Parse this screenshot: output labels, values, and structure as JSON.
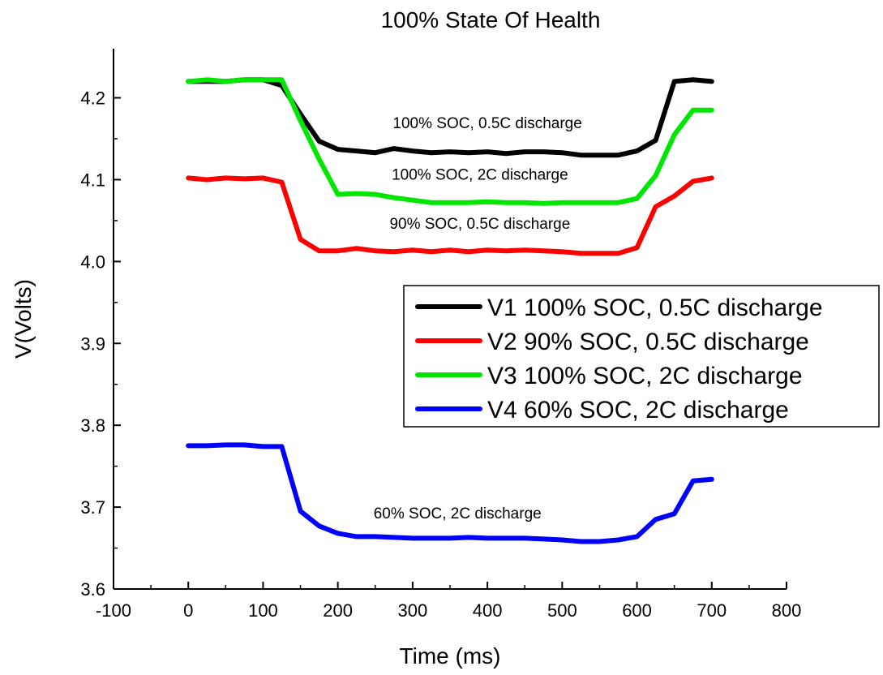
{
  "chart_data": {
    "type": "line",
    "title": "100% State Of Health",
    "xlabel": "Time (ms)",
    "ylabel": "V(Volts)",
    "xlim": [
      -100,
      800
    ],
    "ylim": [
      3.6,
      4.26
    ],
    "xticks": [
      -100,
      0,
      100,
      200,
      300,
      400,
      500,
      600,
      700,
      800
    ],
    "xtick_labels": [
      "-100",
      "0",
      "100",
      "200",
      "300",
      "400",
      "500",
      "600",
      "700",
      "800"
    ],
    "yticks": [
      3.6,
      3.7,
      3.8,
      3.9,
      4.0,
      4.1,
      4.2
    ],
    "ytick_labels": [
      "3.6",
      "3.7",
      "3.8",
      "3.9",
      "4.0",
      "4.1",
      "4.2"
    ],
    "grid": false,
    "legend_position": "right",
    "series": [
      {
        "name": "V1 100% SOC, 0.5C discharge",
        "color": "#000000",
        "x": [
          0,
          25,
          50,
          75,
          100,
          125,
          150,
          175,
          200,
          225,
          250,
          275,
          300,
          325,
          350,
          375,
          400,
          425,
          450,
          475,
          500,
          525,
          550,
          575,
          600,
          625,
          650,
          675,
          700
        ],
        "y": [
          4.22,
          4.22,
          4.22,
          4.222,
          4.222,
          4.215,
          4.18,
          4.147,
          4.137,
          4.135,
          4.133,
          4.138,
          4.135,
          4.133,
          4.134,
          4.133,
          4.134,
          4.132,
          4.134,
          4.134,
          4.133,
          4.13,
          4.13,
          4.13,
          4.135,
          4.148,
          4.22,
          4.222,
          4.22
        ]
      },
      {
        "name": "V2 90% SOC, 0.5C discharge",
        "color": "#ff0000",
        "x": [
          0,
          25,
          50,
          75,
          100,
          125,
          150,
          175,
          200,
          225,
          250,
          275,
          300,
          325,
          350,
          375,
          400,
          425,
          450,
          475,
          500,
          525,
          550,
          575,
          600,
          625,
          650,
          675,
          700
        ],
        "y": [
          4.102,
          4.1,
          4.102,
          4.101,
          4.102,
          4.097,
          4.027,
          4.013,
          4.013,
          4.016,
          4.013,
          4.012,
          4.014,
          4.012,
          4.014,
          4.012,
          4.014,
          4.013,
          4.014,
          4.013,
          4.012,
          4.01,
          4.01,
          4.01,
          4.017,
          4.067,
          4.08,
          4.098,
          4.102
        ]
      },
      {
        "name": "V3 100% SOC, 2C discharge",
        "color": "#00e600",
        "x": [
          0,
          25,
          50,
          75,
          100,
          125,
          150,
          175,
          200,
          225,
          250,
          275,
          300,
          325,
          350,
          375,
          400,
          425,
          450,
          475,
          500,
          525,
          550,
          575,
          600,
          625,
          650,
          675,
          700
        ],
        "y": [
          4.22,
          4.222,
          4.22,
          4.222,
          4.222,
          4.222,
          4.172,
          4.125,
          4.082,
          4.083,
          4.082,
          4.078,
          4.075,
          4.072,
          4.072,
          4.072,
          4.073,
          4.072,
          4.072,
          4.071,
          4.072,
          4.072,
          4.072,
          4.072,
          4.077,
          4.105,
          4.155,
          4.185,
          4.185
        ]
      },
      {
        "name": "V4 60% SOC, 2C discharge",
        "color": "#0000ff",
        "x": [
          0,
          25,
          50,
          75,
          100,
          125,
          150,
          175,
          200,
          225,
          250,
          275,
          300,
          325,
          350,
          375,
          400,
          425,
          450,
          475,
          500,
          525,
          550,
          575,
          600,
          625,
          650,
          675,
          700
        ],
        "y": [
          3.775,
          3.775,
          3.776,
          3.776,
          3.774,
          3.774,
          3.695,
          3.677,
          3.668,
          3.664,
          3.664,
          3.663,
          3.662,
          3.662,
          3.662,
          3.663,
          3.662,
          3.662,
          3.662,
          3.661,
          3.66,
          3.658,
          3.658,
          3.66,
          3.664,
          3.685,
          3.692,
          3.732,
          3.734
        ]
      }
    ],
    "annotations": [
      {
        "text": "100% SOC, 0.5C discharge",
        "x": 400,
        "y": 4.163
      },
      {
        "text": "100% SOC, 2C discharge",
        "x": 390,
        "y": 4.1
      },
      {
        "text": "90% SOC, 0.5C discharge",
        "x": 390,
        "y": 4.04
      },
      {
        "text": "60% SOC, 2C discharge",
        "x": 360,
        "y": 3.686
      }
    ]
  }
}
